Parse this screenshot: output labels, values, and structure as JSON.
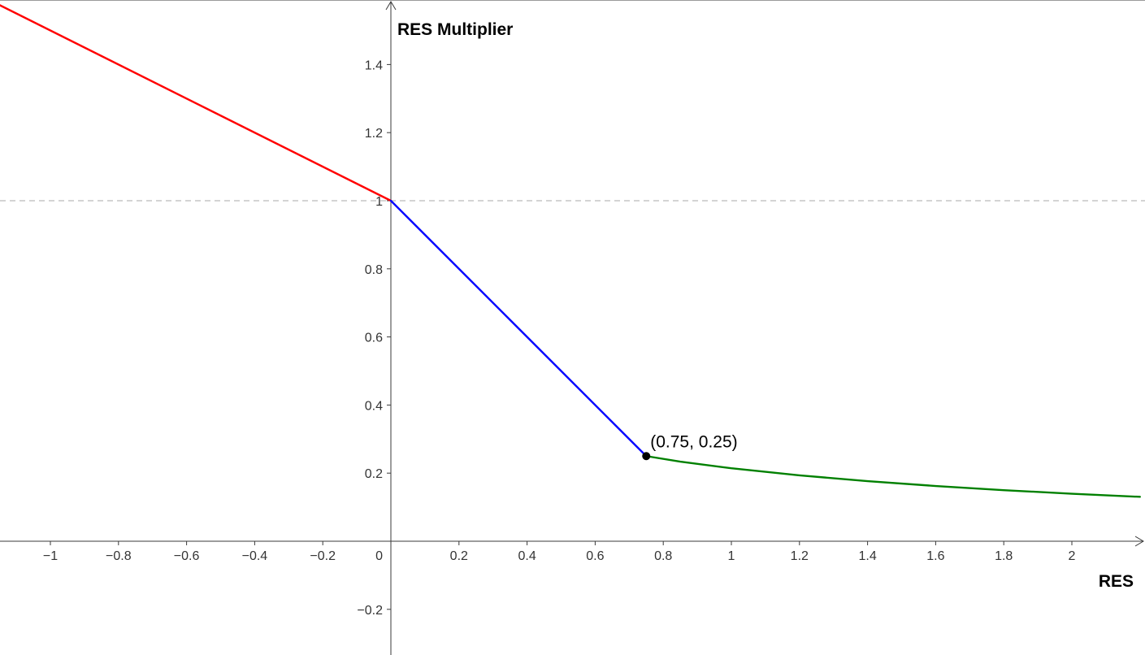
{
  "chart_data": {
    "type": "line",
    "xlabel": "RES",
    "ylabel": "RES Multiplier",
    "xlim": [
      -1.15,
      2.2
    ],
    "ylim": [
      -0.33,
      1.6
    ],
    "grid": false,
    "reference_line": {
      "y": 1,
      "style": "dashed",
      "color": "#a8a8a8"
    },
    "x_ticks": [
      {
        "value": -1,
        "label": "−1"
      },
      {
        "value": -0.8,
        "label": "−0.8"
      },
      {
        "value": -0.6,
        "label": "−0.6"
      },
      {
        "value": -0.4,
        "label": "−0.4"
      },
      {
        "value": -0.2,
        "label": "−0.2"
      },
      {
        "value": 0.2,
        "label": "0.2"
      },
      {
        "value": 0.4,
        "label": "0.4"
      },
      {
        "value": 0.6,
        "label": "0.6"
      },
      {
        "value": 0.8,
        "label": "0.8"
      },
      {
        "value": 1,
        "label": "1"
      },
      {
        "value": 1.2,
        "label": "1.2"
      },
      {
        "value": 1.4,
        "label": "1.4"
      },
      {
        "value": 1.6,
        "label": "1.6"
      },
      {
        "value": 1.8,
        "label": "1.8"
      },
      {
        "value": 2,
        "label": "2"
      }
    ],
    "y_ticks": [
      {
        "value": 1.4,
        "label": "1.4"
      },
      {
        "value": 1.2,
        "label": "1.2"
      },
      {
        "value": 1,
        "label": "1"
      },
      {
        "value": 0.8,
        "label": "0.8"
      },
      {
        "value": 0.6,
        "label": "0.6"
      },
      {
        "value": 0.4,
        "label": "0.4"
      },
      {
        "value": 0.2,
        "label": "0.2"
      },
      {
        "value": -0.2,
        "label": "−0.2"
      }
    ],
    "origin_label": "0",
    "series": [
      {
        "color": "#ff0000",
        "points": [
          [
            -1.15,
            1.575
          ],
          [
            0,
            1
          ]
        ]
      },
      {
        "color": "#0000ff",
        "points": [
          [
            0,
            1
          ],
          [
            0.75,
            0.25
          ]
        ]
      },
      {
        "color": "#008000",
        "points": [
          [
            0.75,
            0.25
          ],
          [
            0.85,
            0.2336
          ],
          [
            1.0,
            0.2143
          ],
          [
            1.2,
            0.1935
          ],
          [
            1.4,
            0.1765
          ],
          [
            1.6,
            0.1622
          ],
          [
            1.8,
            0.15
          ],
          [
            2.0,
            0.1395
          ],
          [
            2.2,
            0.1304
          ]
        ]
      }
    ],
    "annotations": [
      {
        "x": 0.75,
        "y": 0.25,
        "label": "(0.75, 0.25)"
      }
    ]
  }
}
